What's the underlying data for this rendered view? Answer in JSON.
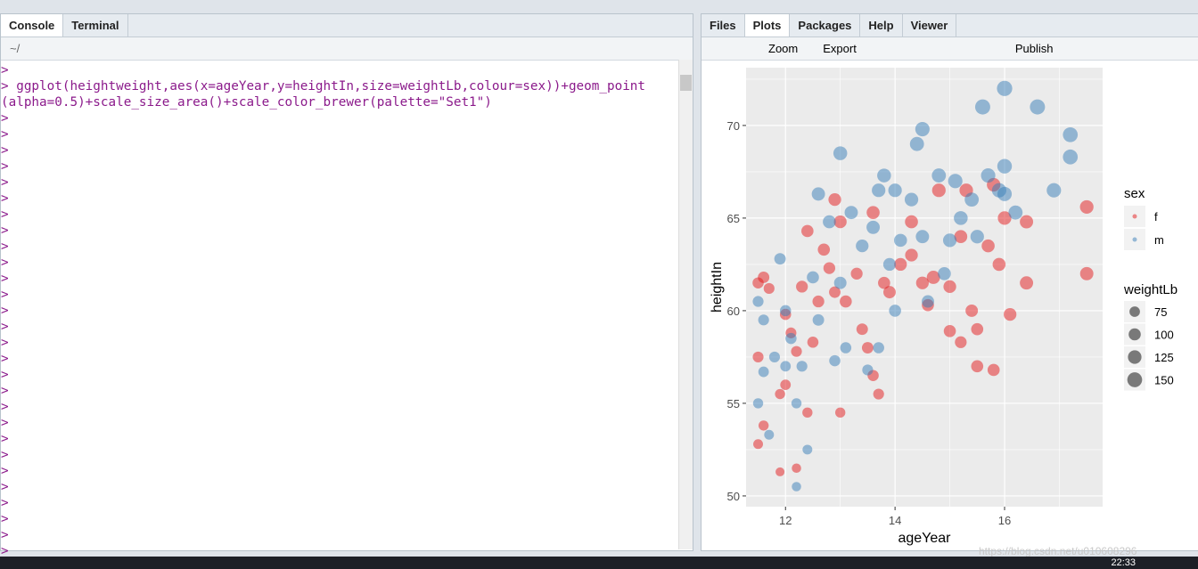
{
  "console_pane": {
    "tabs": [
      "Console",
      "Terminal"
    ],
    "path": "~/",
    "lines": [
      ">",
      "> ggplot(heightweight,aes(x=ageYear,y=heightIn,size=weightLb,colour=sex))+geom_point",
      "(alpha=0.5)+scale_size_area()+scale_color_brewer(palette=\"Set1\")",
      ">",
      ">",
      ">",
      ">",
      ">",
      ">",
      ">",
      ">",
      ">",
      ">",
      ">",
      ">",
      ">",
      ">",
      ">",
      ">",
      ">",
      ">",
      ">",
      ">",
      ">",
      ">",
      ">",
      ">",
      ">",
      ">",
      ">",
      ">"
    ]
  },
  "plots_pane": {
    "tabs": [
      "Files",
      "Plots",
      "Packages",
      "Help",
      "Viewer"
    ],
    "toolbar": [
      "Zoom",
      "Export",
      "Publish"
    ]
  },
  "chart_data": {
    "type": "scatter",
    "x_label": "ageYear",
    "y_label": "heightIn",
    "xlim": [
      11.28,
      17.79
    ],
    "ylim": [
      49.42,
      73.12
    ],
    "xticks": [
      12,
      14,
      16
    ],
    "yticks": [
      50,
      55,
      60,
      65,
      70
    ],
    "grid": true,
    "legend_position": "right",
    "alpha": 0.5,
    "color_legend_title": "sex",
    "size_legend_title": "weightLb",
    "size_legend": [
      75,
      100,
      125,
      150
    ],
    "series": [
      {
        "name": "f",
        "color": "#e41a1c",
        "x": [
          11.5,
          11.6,
          11.7,
          11.5,
          11.6,
          11.5,
          11.9,
          11.9,
          12.0,
          12.0,
          12.1,
          12.2,
          12.3,
          12.2,
          12.4,
          12.4,
          12.5,
          12.6,
          12.7,
          12.8,
          12.9,
          12.9,
          13.0,
          13.0,
          13.1,
          13.3,
          13.4,
          13.5,
          13.6,
          13.6,
          13.7,
          13.8,
          13.9,
          14.1,
          14.3,
          14.5,
          14.6,
          14.7,
          14.8,
          15.0,
          15.0,
          15.2,
          15.3,
          15.4,
          15.5,
          15.5,
          15.7,
          15.8,
          15.9,
          16.0,
          16.1,
          16.4,
          16.4,
          17.5,
          17.5,
          15.8,
          15.2,
          14.3
        ],
        "y": [
          61.5,
          61.8,
          61.2,
          57.5,
          53.8,
          52.8,
          51.3,
          55.5,
          56.0,
          59.8,
          58.8,
          57.8,
          61.3,
          51.5,
          64.3,
          54.5,
          58.3,
          60.5,
          63.3,
          62.3,
          61.0,
          66.0,
          54.5,
          64.8,
          60.5,
          62.0,
          59.0,
          58.0,
          56.5,
          65.3,
          55.5,
          61.5,
          61.0,
          62.5,
          64.8,
          61.5,
          60.3,
          61.8,
          66.5,
          58.9,
          61.3,
          58.3,
          66.5,
          60.0,
          57.0,
          59.0,
          63.5,
          56.8,
          62.5,
          65.0,
          59.8,
          61.5,
          64.8,
          65.6,
          62.0,
          66.8,
          64.0,
          63.0
        ],
        "size": [
          85,
          90,
          80,
          80,
          70,
          65,
          55,
          70,
          75,
          85,
          80,
          80,
          95,
          60,
          100,
          70,
          85,
          95,
          100,
          95,
          90,
          110,
          70,
          110,
          100,
          95,
          90,
          90,
          85,
          115,
          80,
          100,
          105,
          110,
          115,
          110,
          100,
          120,
          125,
          100,
          110,
          95,
          125,
          105,
          100,
          100,
          115,
          100,
          115,
          125,
          110,
          120,
          120,
          125,
          120,
          125,
          115,
          110
        ]
      },
      {
        "name": "m",
        "color": "#377eb8",
        "x": [
          11.5,
          11.6,
          11.6,
          11.5,
          11.7,
          11.8,
          11.9,
          12.0,
          12.0,
          12.1,
          12.2,
          12.2,
          12.3,
          12.4,
          12.5,
          12.6,
          12.6,
          12.8,
          12.9,
          13.0,
          13.0,
          13.1,
          13.2,
          13.4,
          13.5,
          13.6,
          13.7,
          13.7,
          13.8,
          13.9,
          14.0,
          14.0,
          14.1,
          14.3,
          14.4,
          14.5,
          14.5,
          14.6,
          14.8,
          15.0,
          15.1,
          15.2,
          15.4,
          15.6,
          15.7,
          15.9,
          16.0,
          16.0,
          16.0,
          16.2,
          16.6,
          16.9,
          17.2,
          17.2,
          14.9,
          15.5
        ],
        "y": [
          60.5,
          59.5,
          56.7,
          55.0,
          53.3,
          57.5,
          62.8,
          60.0,
          57.0,
          58.5,
          55.0,
          50.5,
          57.0,
          52.5,
          61.8,
          66.3,
          59.5,
          64.8,
          57.3,
          68.5,
          61.5,
          58.0,
          65.3,
          63.5,
          56.8,
          64.5,
          66.5,
          58.0,
          67.3,
          62.5,
          66.5,
          60.0,
          63.8,
          66.0,
          69.0,
          69.8,
          64.0,
          60.5,
          67.3,
          63.8,
          67.0,
          65.0,
          66.0,
          71.0,
          67.3,
          66.5,
          72.0,
          67.8,
          66.3,
          65.3,
          71.0,
          66.5,
          69.5,
          68.3,
          62.0,
          64.0
        ],
        "size": [
          80,
          80,
          75,
          70,
          65,
          80,
          90,
          85,
          75,
          85,
          70,
          60,
          80,
          65,
          100,
          120,
          90,
          115,
          85,
          130,
          105,
          85,
          120,
          110,
          80,
          120,
          125,
          85,
          130,
          110,
          125,
          100,
          115,
          125,
          135,
          140,
          120,
          105,
          135,
          125,
          140,
          130,
          135,
          155,
          140,
          140,
          160,
          145,
          140,
          135,
          155,
          140,
          150,
          150,
          115,
          125
        ]
      }
    ]
  },
  "watermark": "https://blog.csdn.net/u010608296",
  "taskbar": {
    "time": "22:33"
  }
}
